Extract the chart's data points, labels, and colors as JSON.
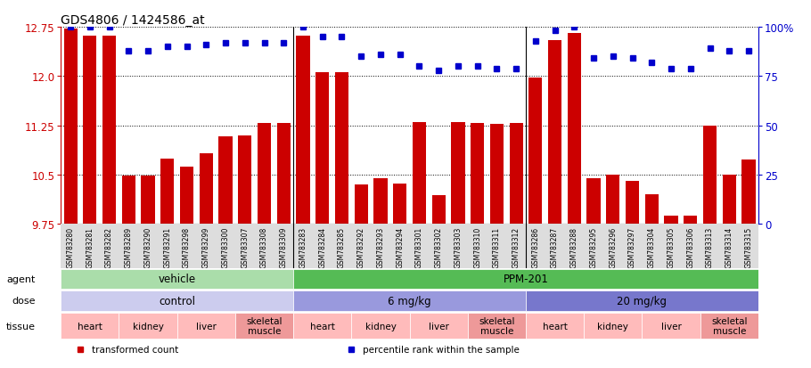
{
  "title": "GDS4806 / 1424586_at",
  "samples": [
    "GSM783280",
    "GSM783281",
    "GSM783282",
    "GSM783289",
    "GSM783290",
    "GSM783291",
    "GSM783298",
    "GSM783299",
    "GSM783300",
    "GSM783307",
    "GSM783308",
    "GSM783309",
    "GSM783283",
    "GSM783284",
    "GSM783285",
    "GSM783292",
    "GSM783293",
    "GSM783294",
    "GSM783301",
    "GSM783302",
    "GSM783303",
    "GSM783310",
    "GSM783311",
    "GSM783312",
    "GSM783286",
    "GSM783287",
    "GSM783288",
    "GSM783295",
    "GSM783296",
    "GSM783297",
    "GSM783304",
    "GSM783305",
    "GSM783306",
    "GSM783313",
    "GSM783314",
    "GSM783315"
  ],
  "bar_values": [
    12.72,
    12.62,
    12.62,
    10.48,
    10.49,
    10.74,
    10.62,
    10.83,
    11.08,
    11.1,
    11.29,
    11.28,
    12.62,
    12.06,
    12.06,
    10.35,
    10.45,
    10.37,
    11.3,
    10.19,
    11.3,
    11.28,
    11.27,
    11.28,
    11.98,
    12.55,
    12.65,
    10.45,
    10.5,
    10.4,
    10.2,
    9.88,
    9.88,
    11.25,
    10.5,
    10.73
  ],
  "percentile_values": [
    100,
    100,
    100,
    88,
    88,
    90,
    90,
    91,
    92,
    92,
    92,
    92,
    100,
    95,
    95,
    85,
    86,
    86,
    80,
    78,
    80,
    80,
    79,
    79,
    93,
    98,
    100,
    84,
    85,
    84,
    82,
    79,
    79,
    89,
    88,
    88
  ],
  "ylim_left": [
    9.75,
    12.75
  ],
  "yticks_left": [
    9.75,
    10.5,
    11.25,
    12.0,
    12.75
  ],
  "ylim_right": [
    0,
    100
  ],
  "yticks_right": [
    0,
    25,
    50,
    75,
    100
  ],
  "bar_color": "#cc0000",
  "dot_color": "#0000cc",
  "agent_groups": [
    {
      "label": "vehicle",
      "start": 0,
      "end": 12,
      "color": "#aaddaa"
    },
    {
      "label": "PPM-201",
      "start": 12,
      "end": 36,
      "color": "#55bb55"
    }
  ],
  "dose_groups": [
    {
      "label": "control",
      "start": 0,
      "end": 12,
      "color": "#ccccee"
    },
    {
      "label": "6 mg/kg",
      "start": 12,
      "end": 24,
      "color": "#9999dd"
    },
    {
      "label": "20 mg/kg",
      "start": 24,
      "end": 36,
      "color": "#7777cc"
    }
  ],
  "tissue_groups": [
    {
      "label": "heart",
      "start": 0,
      "end": 3,
      "color": "#ffbbbb"
    },
    {
      "label": "kidney",
      "start": 3,
      "end": 6,
      "color": "#ffbbbb"
    },
    {
      "label": "liver",
      "start": 6,
      "end": 9,
      "color": "#ffbbbb"
    },
    {
      "label": "skeletal\nmuscle",
      "start": 9,
      "end": 12,
      "color": "#ee9999"
    },
    {
      "label": "heart",
      "start": 12,
      "end": 15,
      "color": "#ffbbbb"
    },
    {
      "label": "kidney",
      "start": 15,
      "end": 18,
      "color": "#ffbbbb"
    },
    {
      "label": "liver",
      "start": 18,
      "end": 21,
      "color": "#ffbbbb"
    },
    {
      "label": "skeletal\nmuscle",
      "start": 21,
      "end": 24,
      "color": "#ee9999"
    },
    {
      "label": "heart",
      "start": 24,
      "end": 27,
      "color": "#ffbbbb"
    },
    {
      "label": "kidney",
      "start": 27,
      "end": 30,
      "color": "#ffbbbb"
    },
    {
      "label": "liver",
      "start": 30,
      "end": 33,
      "color": "#ffbbbb"
    },
    {
      "label": "skeletal\nmuscle",
      "start": 33,
      "end": 36,
      "color": "#ee9999"
    }
  ],
  "legend_items": [
    {
      "label": "transformed count",
      "color": "#cc0000"
    },
    {
      "label": "percentile rank within the sample",
      "color": "#0000cc"
    }
  ]
}
